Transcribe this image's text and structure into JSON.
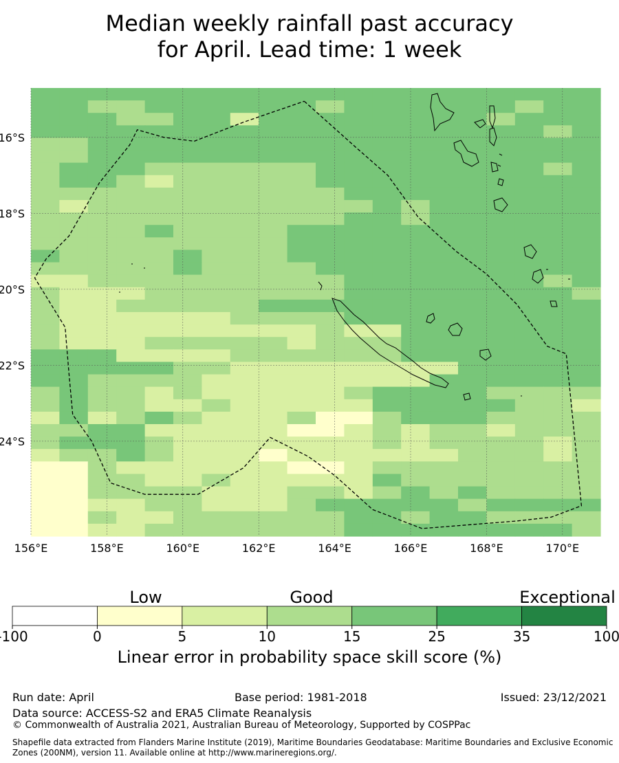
{
  "title_line1": "Median weekly rainfall past accuracy",
  "title_line2": "for April. Lead time: 1 week",
  "map": {
    "lon_range": [
      156,
      171
    ],
    "lat_range": [
      -26.5,
      -14.7
    ],
    "grid_lon_step": 0.83333,
    "grid_lat_step": 0.55,
    "x_ticks": [
      {
        "value": 156,
        "label": "156°E"
      },
      {
        "value": 158,
        "label": "158°E"
      },
      {
        "value": 160,
        "label": "160°E"
      },
      {
        "value": 162,
        "label": "162°E"
      },
      {
        "value": 164,
        "label": "164°E"
      },
      {
        "value": 166,
        "label": "166°E"
      },
      {
        "value": 168,
        "label": "168°E"
      },
      {
        "value": 170,
        "label": "170°E"
      }
    ],
    "y_ticks": [
      {
        "value": -16,
        "label": "16°S"
      },
      {
        "value": -18,
        "label": "18°S"
      },
      {
        "value": -20,
        "label": "20°S"
      },
      {
        "value": -22,
        "label": "22°S"
      },
      {
        "value": -24,
        "label": "24°S"
      }
    ],
    "grid": true,
    "skill_grid_rows": [
      "44444444444444444444",
      "44334444443444444344",
      "44433442444444443444",
      "44444444444444444434",
      "33444444444444444444",
      "33444444444444444444",
      "34443333334444444434",
      "34432333334444444444",
      "33333333333444444444",
      "32333333333343444444",
      "33333333333443444444",
      "33334333344444444444",
      "33333333344444444444",
      "43333433344444444444",
      "33333433334444444444",
      "22333333333444444434",
      "32223333333444444443",
      "32233333444444444444",
      "32222223333444444444",
      "32222222223224444444",
      "32223333323334444444",
      "44422223333334444444",
      "44444332222222244444",
      "44333322222222444444",
      "34332322222344443333",
      "34332232222244444332",
      "24234322231134443333",
      "33442222211232332333",
      "34443222222232333323",
      "23343222122222233323",
      "11322222211233333333",
      "11332232222243333333",
      "11333322233234343333",
      "11223322234444434444",
      "11322333333443443333",
      "11223333333444444443"
    ],
    "eez_boundary": [
      [
        163.2,
        -15.05
      ],
      [
        164.6,
        -16.3
      ],
      [
        165.4,
        -17.0
      ],
      [
        166.2,
        -18.1
      ],
      [
        167.2,
        -19.0
      ],
      [
        168.0,
        -19.6
      ],
      [
        168.8,
        -20.4
      ],
      [
        169.6,
        -21.5
      ],
      [
        170.1,
        -21.7
      ],
      [
        170.5,
        -25.7
      ],
      [
        169.7,
        -26.0
      ],
      [
        168.8,
        -26.1
      ],
      [
        166.3,
        -26.3
      ],
      [
        165.0,
        -25.8
      ],
      [
        164.0,
        -24.9
      ],
      [
        163.3,
        -24.4
      ],
      [
        162.3,
        -23.9
      ],
      [
        161.6,
        -24.7
      ],
      [
        160.4,
        -25.4
      ],
      [
        159.0,
        -25.4
      ],
      [
        158.1,
        -25.1
      ],
      [
        157.6,
        -24.0
      ],
      [
        157.1,
        -23.3
      ],
      [
        157.0,
        -22.2
      ],
      [
        156.9,
        -21.0
      ],
      [
        156.1,
        -19.7
      ],
      [
        156.4,
        -19.2
      ],
      [
        157.0,
        -18.6
      ],
      [
        157.8,
        -17.2
      ],
      [
        158.6,
        -16.2
      ],
      [
        158.8,
        -15.8
      ],
      [
        159.5,
        -16.0
      ],
      [
        160.3,
        -16.1
      ],
      [
        161.6,
        -15.6
      ],
      [
        163.2,
        -15.05
      ]
    ]
  },
  "colorbar": {
    "categories": [
      {
        "label": "Low",
        "anchor": 2.5
      },
      {
        "label": "Good",
        "anchor": 7.5
      },
      {
        "label": "Exceptional",
        "anchor": 12.5
      }
    ],
    "tick_labels": [
      "-100",
      "0",
      "5",
      "10",
      "15",
      "25",
      "35",
      "100"
    ],
    "colors": [
      "#ffffff",
      "#ffffcc",
      "#d9f0a3",
      "#addd8e",
      "#78c679",
      "#41ab5d",
      "#238443"
    ],
    "xlabel": "Linear error in probability space skill score (%)"
  },
  "footer": {
    "run_date": "Run date: April",
    "base_period": "Base period: 1981-2018",
    "issued": "Issued: 23/12/2021",
    "data_source": "Data source: ACCESS-S2 and ERA5 Climate Reanalysis",
    "copyright": "© Commonwealth of Australia 2021, Australian Bureau of Meteorology, Supported by COSPPac",
    "shapefile": "Shapefile data extracted from Flanders Marine Institute (2019), Maritime Boundaries Geodatabase: Maritime Boundaries and Exclusive Economic Zones (200NM), version 11. Available online at http://www.marineregions.org/."
  }
}
